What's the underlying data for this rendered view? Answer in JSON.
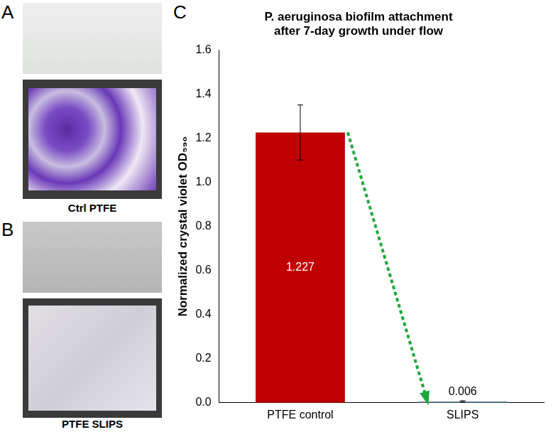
{
  "chart_data": {
    "type": "bar",
    "title": "P. aeruginosa biofilm attachment after 7-day growth under flow",
    "y_label": "Normalized crystal violet OD₅₉₀",
    "categories": [
      "PTFE control",
      "SLIPS"
    ],
    "values": [
      1.227,
      0.006
    ],
    "errors": [
      0.125,
      0.003
    ],
    "colors": [
      "#c00000",
      "#6f8fb5"
    ],
    "ylim": [
      0,
      1.6
    ],
    "yticks": [
      {
        "value": 0,
        "label": "0.0"
      },
      0.2,
      0.4,
      0.6,
      0.8,
      {
        "value": 1,
        "label": "1.0"
      },
      1.2,
      1.4,
      1.6
    ],
    "grid": false,
    "data_labels": true
  },
  "figure": {
    "panel_labels": [
      "A",
      "B",
      "C"
    ],
    "photos": [
      {
        "label": "Ctrl PTFE"
      },
      {
        "label": "PTFE SLIPS"
      }
    ]
  }
}
